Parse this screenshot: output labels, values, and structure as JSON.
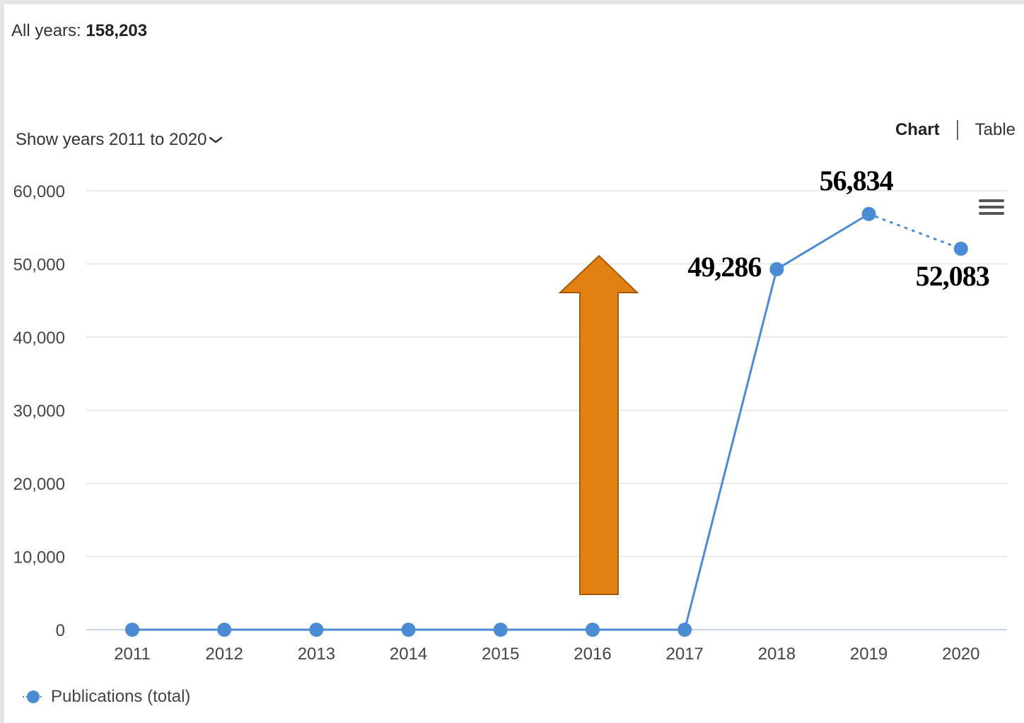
{
  "header": {
    "summary_label": "All years:",
    "summary_value": "158,203",
    "range_label": "Show years 2011 to 2020",
    "view_chart": "Chart",
    "view_table": "Table"
  },
  "icons": {
    "range": "chevron-down-icon",
    "menu": "hamburger-menu-icon",
    "legend": "circle-marker-icon",
    "arrow": "up-arrow-icon"
  },
  "colors": {
    "series": "#4a8bd4",
    "arrow_fill": "#e28012",
    "arrow_stroke": "#a85a09"
  },
  "chart_data": {
    "type": "line",
    "x": [
      "2011",
      "2012",
      "2013",
      "2014",
      "2015",
      "2016",
      "2017",
      "2018",
      "2019",
      "2020"
    ],
    "series": [
      {
        "name": "Publications (total)",
        "values": [
          0,
          0,
          0,
          0,
          0,
          0,
          0,
          49286,
          56834,
          52083
        ]
      }
    ],
    "y_ticks": [
      "0",
      "10,000",
      "20,000",
      "30,000",
      "40,000",
      "50,000",
      "60,000"
    ],
    "ylim": [
      0,
      60000
    ],
    "grid": true,
    "legend_position": "bottom-left",
    "dotted_last_segment": true,
    "annotations": [
      {
        "text": "49,286",
        "x": "2018"
      },
      {
        "text": "56,834",
        "x": "2019"
      },
      {
        "text": "52,083",
        "x": "2020"
      }
    ]
  }
}
